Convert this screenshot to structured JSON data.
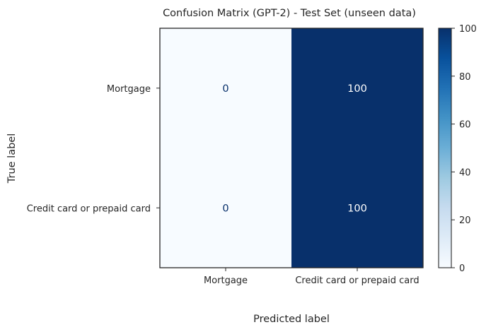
{
  "chart_data": {
    "type": "heatmap",
    "title": "Confusion Matrix (GPT-2) - Test Set (unseen data)",
    "xlabel": "Predicted label",
    "ylabel": "True label",
    "row_labels": [
      "Mortgage",
      "Credit card or prepaid card"
    ],
    "col_labels": [
      "Mortgage",
      "Credit card or prepaid card"
    ],
    "values": [
      [
        0,
        100
      ],
      [
        0,
        100
      ]
    ],
    "cell_labels": [
      [
        "0",
        "100"
      ],
      [
        "0",
        "100"
      ]
    ],
    "colormap": "Blues",
    "vmin": 0,
    "vmax": 100,
    "colorbar_ticks": [
      0,
      20,
      40,
      60,
      80,
      100
    ],
    "colorbar_tick_labels": [
      "0",
      "20",
      "40",
      "60",
      "80",
      "100"
    ]
  }
}
